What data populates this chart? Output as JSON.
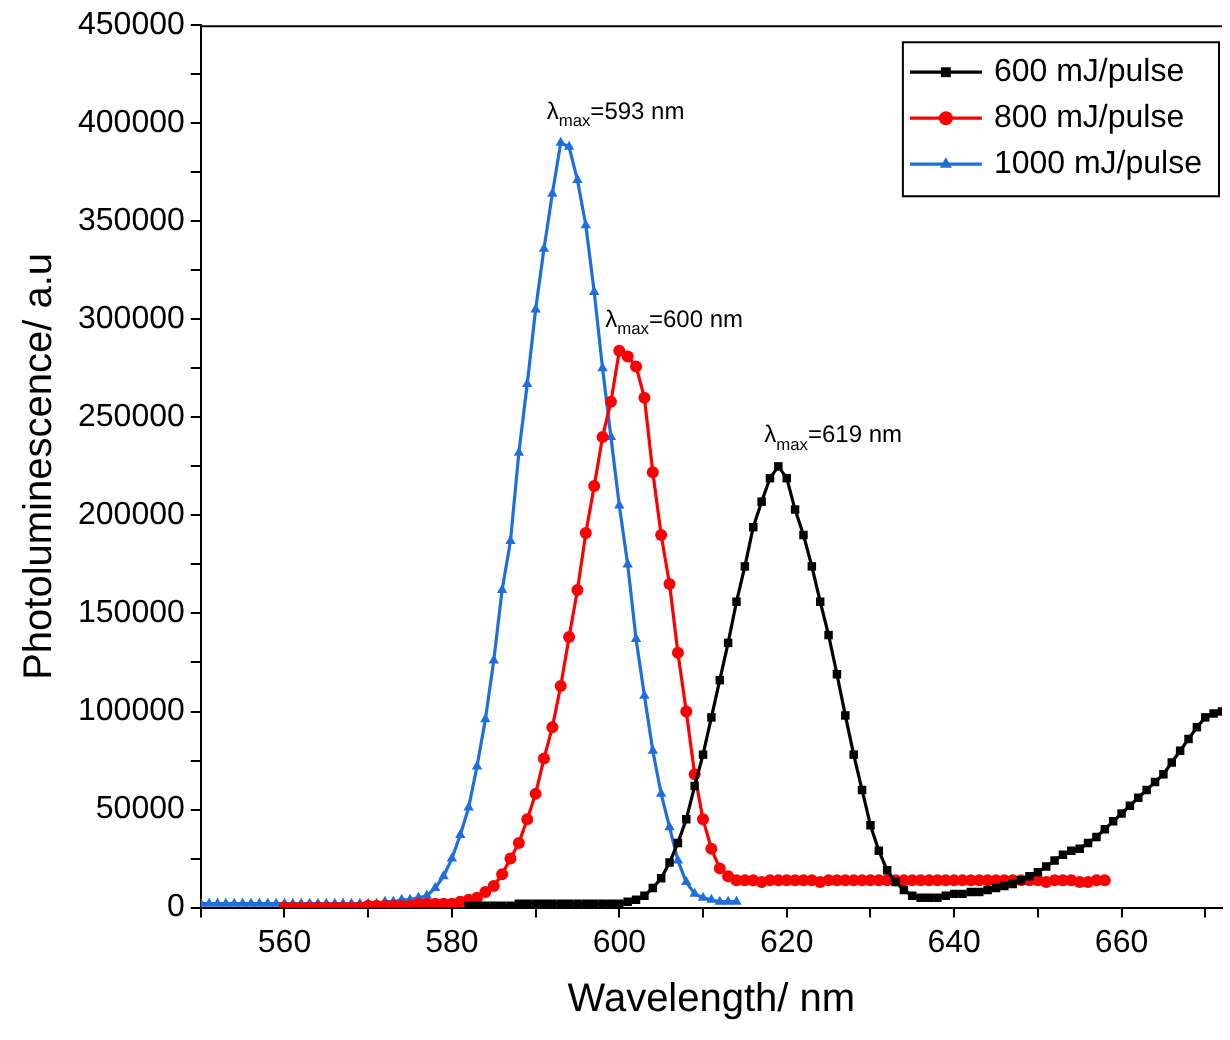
{
  "chart_data": {
    "type": "line",
    "xlabel": "Wavelength/ nm",
    "ylabel": "Photoluminescence/ a.u",
    "xlim": [
      550,
      672
    ],
    "xticks": [
      {
        "value": 550,
        "label": null
      },
      560,
      {
        "value": 570,
        "label": null
      },
      580,
      {
        "value": 590,
        "label": null
      },
      600,
      {
        "value": 610,
        "label": null
      },
      620,
      {
        "value": 630,
        "label": null
      },
      640,
      {
        "value": 650,
        "label": null
      },
      660,
      {
        "value": 670,
        "label": null
      }
    ],
    "ylim": [
      0,
      450000
    ],
    "yticks": [
      0,
      {
        "value": 25000,
        "label": null
      },
      50000,
      {
        "value": 75000,
        "label": null
      },
      100000,
      {
        "value": 125000,
        "label": null
      },
      150000,
      {
        "value": 175000,
        "label": null
      },
      200000,
      {
        "value": 225000,
        "label": null
      },
      250000,
      {
        "value": 275000,
        "label": null
      },
      300000,
      {
        "value": 325000,
        "label": null
      },
      350000,
      {
        "value": 375000,
        "label": null
      },
      400000,
      {
        "value": 425000,
        "label": null
      },
      450000
    ],
    "grid": false,
    "legend": "top right",
    "line_style": "solid",
    "annotations": [
      {
        "text": "λ$_{max}$=593 nm",
        "x": 593,
        "y": 390000
      },
      {
        "text": "λ$_{max}$=600 nm",
        "x": 600,
        "y": 284000
      },
      {
        "text": "λ$_{max}$=619 nm",
        "x": 619,
        "y": 225000
      }
    ],
    "series": [
      {
        "name": "600 mJ/pulse",
        "color": "#000000",
        "marker": "square",
        "x": [
          582,
          583,
          584,
          585,
          586,
          587,
          588,
          589,
          590,
          591,
          592,
          593,
          594,
          595,
          596,
          597,
          598,
          599,
          600,
          601,
          602,
          603,
          604,
          605,
          606,
          607,
          608,
          609,
          610,
          611,
          612,
          613,
          614,
          615,
          616,
          617,
          618,
          619,
          620,
          621,
          622,
          623,
          624,
          625,
          626,
          627,
          628,
          629,
          630,
          631,
          632,
          633,
          634,
          635,
          636,
          637,
          638,
          639,
          640,
          641,
          642,
          643,
          644,
          645,
          646,
          647,
          648,
          649,
          650,
          651,
          652,
          653,
          654,
          655,
          656,
          657,
          658,
          659,
          660,
          661,
          662,
          663,
          664,
          665,
          666,
          667,
          668,
          669,
          670,
          671,
          672
        ],
        "values": [
          1000,
          1000,
          1000,
          1000,
          1000,
          1000,
          2000,
          2000,
          2000,
          2000,
          2000,
          2000,
          2000,
          2000,
          2000,
          2000,
          2000,
          2000,
          2000,
          3000,
          4000,
          6000,
          10000,
          15000,
          23000,
          33000,
          45000,
          62000,
          78000,
          97000,
          116000,
          135000,
          156000,
          174000,
          194000,
          207000,
          219000,
          225000,
          219000,
          203000,
          190000,
          174000,
          156000,
          139000,
          119000,
          98000,
          78000,
          60000,
          42000,
          29000,
          19000,
          13000,
          9000,
          6000,
          5000,
          5000,
          5000,
          6000,
          7000,
          7000,
          8000,
          8000,
          9000,
          10000,
          11000,
          12000,
          14000,
          16000,
          18000,
          21000,
          24000,
          27000,
          29000,
          30000,
          33000,
          36000,
          40000,
          44000,
          48000,
          52000,
          56000,
          60000,
          64000,
          68000,
          74000,
          80000,
          86000,
          92000,
          97000,
          99000,
          100000
        ]
      },
      {
        "name": "800 mJ/pulse",
        "color": "#ff0000",
        "marker": "circle",
        "x": [
          560,
          561,
          562,
          563,
          564,
          565,
          566,
          567,
          568,
          569,
          570,
          571,
          572,
          573,
          574,
          575,
          576,
          577,
          578,
          579,
          580,
          581,
          582,
          583,
          584,
          585,
          586,
          587,
          588,
          589,
          590,
          591,
          592,
          593,
          594,
          595,
          596,
          597,
          598,
          599,
          600,
          601,
          602,
          603,
          604,
          605,
          606,
          607,
          608,
          609,
          610,
          611,
          612,
          613,
          614,
          615,
          616,
          617,
          618,
          619,
          620,
          621,
          622,
          623,
          624,
          625,
          626,
          627,
          628,
          629,
          630,
          631,
          632,
          633,
          634,
          635,
          636,
          637,
          638,
          639,
          640,
          641,
          642,
          643,
          644,
          645,
          646,
          647,
          648,
          649,
          650,
          651,
          652,
          653,
          654,
          655,
          656,
          657,
          658
        ],
        "values": [
          0,
          0,
          0,
          0,
          0,
          0,
          0,
          0,
          0,
          0,
          1000,
          1000,
          1000,
          1000,
          1000,
          1000,
          2000,
          2000,
          2000,
          2000,
          2000,
          3000,
          4000,
          5000,
          8000,
          11000,
          17000,
          25000,
          33000,
          45000,
          58000,
          76000,
          92000,
          113000,
          138000,
          162000,
          191000,
          215000,
          240000,
          258000,
          284000,
          281000,
          276000,
          260000,
          222000,
          190000,
          165000,
          130000,
          100000,
          68000,
          45000,
          30000,
          20000,
          16000,
          14000,
          14000,
          14000,
          13000,
          14000,
          14000,
          14000,
          14000,
          14000,
          14000,
          13000,
          14000,
          14000,
          14000,
          14000,
          14000,
          14000,
          14000,
          14000,
          14000,
          14000,
          14000,
          14000,
          14000,
          14000,
          14000,
          14000,
          14000,
          14000,
          14000,
          14000,
          14000,
          14000,
          14000,
          14000,
          14000,
          14000,
          13000,
          14000,
          14000,
          14000,
          13000,
          13000,
          14000,
          14000
        ]
      },
      {
        "name": "1000 mJ/pulse",
        "color": "#1e6fdc",
        "marker": "triangle",
        "x": [
          550,
          551,
          552,
          553,
          554,
          555,
          556,
          557,
          558,
          559,
          560,
          561,
          562,
          563,
          564,
          565,
          566,
          567,
          568,
          569,
          570,
          571,
          572,
          573,
          574,
          575,
          576,
          577,
          578,
          579,
          580,
          581,
          582,
          583,
          584,
          585,
          586,
          587,
          588,
          589,
          590,
          591,
          592,
          593,
          594,
          595,
          596,
          597,
          598,
          599,
          600,
          601,
          602,
          603,
          604,
          605,
          606,
          607,
          608,
          609,
          610,
          611,
          612,
          613,
          614
        ],
        "values": [
          2000,
          2000,
          2000,
          2000,
          2000,
          2000,
          2000,
          2000,
          2000,
          2000,
          2000,
          2000,
          2000,
          2000,
          2000,
          2000,
          2000,
          2000,
          2000,
          2000,
          2000,
          2000,
          3000,
          3000,
          4000,
          4000,
          5000,
          6000,
          10000,
          16000,
          25000,
          37000,
          51000,
          72000,
          96000,
          126000,
          162000,
          187000,
          232000,
          267000,
          305000,
          336000,
          364000,
          390000,
          388000,
          371000,
          348000,
          314000,
          275000,
          240000,
          205000,
          175000,
          137000,
          108000,
          80000,
          58000,
          41000,
          24000,
          13000,
          7000,
          5000,
          4000,
          3000,
          3000,
          3000
        ]
      }
    ]
  }
}
